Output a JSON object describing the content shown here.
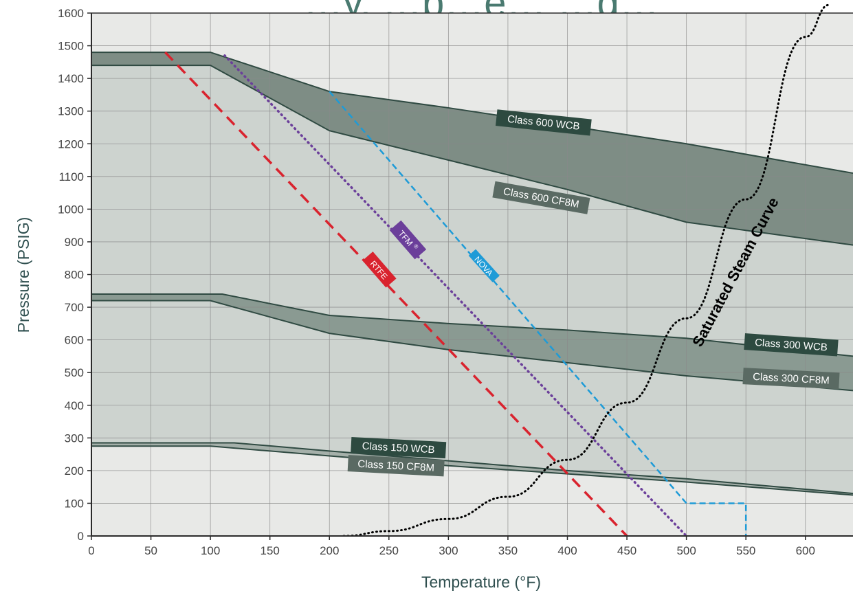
{
  "chart_data": {
    "type": "line",
    "title": "…y, …p…e… …g…",
    "xlabel": "Temperature (°F)",
    "ylabel": "Pressure (PSIG)",
    "xlim": [
      0,
      640
    ],
    "ylim": [
      0,
      1600
    ],
    "xticks": [
      0,
      50,
      100,
      150,
      200,
      250,
      300,
      350,
      400,
      450,
      500,
      550,
      600
    ],
    "yticks": [
      0,
      100,
      200,
      300,
      400,
      500,
      600,
      700,
      800,
      900,
      1000,
      1100,
      1200,
      1300,
      1400,
      1500,
      1600
    ],
    "grid": true,
    "colors": {
      "plot_bg": "#e8e9e7",
      "band_150": "#a5b0aa",
      "band_300_fill": "#8a9a92",
      "band_600_fill": "#7e8d85",
      "region_300": "#cdd3cf",
      "boundary": "#2f4a42",
      "rtfe": "#d9232e",
      "tfm": "#6b3f9a",
      "nova": "#1e9bd7",
      "steam": "#000000",
      "label_dark": "#2d4a40",
      "label_mid": "#5a6a63"
    },
    "series": [
      {
        "name": "Class 600 WCB",
        "x": [
          0,
          100,
          200,
          300,
          400,
          500,
          640
        ],
        "y": [
          1480,
          1480,
          1360,
          1310,
          1255,
          1200,
          1110
        ]
      },
      {
        "name": "Class 600 CF8M",
        "x": [
          0,
          100,
          200,
          300,
          400,
          500,
          640
        ],
        "y": [
          1440,
          1440,
          1240,
          1150,
          1060,
          960,
          890
        ]
      },
      {
        "name": "Class 300 WCB",
        "x": [
          0,
          110,
          200,
          300,
          400,
          500,
          640
        ],
        "y": [
          740,
          740,
          675,
          650,
          630,
          605,
          550
        ]
      },
      {
        "name": "Class 300 CF8M",
        "x": [
          0,
          100,
          200,
          300,
          400,
          500,
          640
        ],
        "y": [
          720,
          720,
          620,
          570,
          530,
          490,
          445
        ]
      },
      {
        "name": "Class 150 WCB",
        "x": [
          0,
          120,
          200,
          300,
          400,
          500,
          640
        ],
        "y": [
          285,
          285,
          260,
          230,
          200,
          175,
          130
        ]
      },
      {
        "name": "Class 150 CF8M",
        "x": [
          0,
          100,
          200,
          300,
          400,
          500,
          640
        ],
        "y": [
          275,
          275,
          245,
          215,
          190,
          165,
          125
        ]
      },
      {
        "name": "RTFE",
        "x": [
          62,
          450
        ],
        "y": [
          1480,
          0
        ]
      },
      {
        "name": "TFM®",
        "x": [
          112,
          500
        ],
        "y": [
          1470,
          0
        ]
      },
      {
        "name": "NOVA",
        "x": [
          200,
          500,
          500,
          550,
          550
        ],
        "y": [
          1360,
          100,
          100,
          100,
          0
        ]
      },
      {
        "name": "Saturated Steam Curve",
        "x": [
          212,
          250,
          300,
          350,
          400,
          450,
          500,
          550,
          600,
          620
        ],
        "y": [
          0,
          15,
          52,
          120,
          233,
          408,
          666,
          1030,
          1527,
          1625
        ]
      }
    ],
    "labels": {
      "c600wcb": "Class 600 WCB",
      "c600cf8m": "Class 600 CF8M",
      "c300wcb": "Class 300 WCB",
      "c300cf8m": "Class 300 CF8M",
      "c150wcb": "Class 150 WCB",
      "c150cf8m": "Class 150 CF8M",
      "rtfe": "RTFE",
      "tfm": "TFM",
      "tfm_sup": "®",
      "nova": "NOVA",
      "steam": "Saturated Steam Curve"
    }
  }
}
